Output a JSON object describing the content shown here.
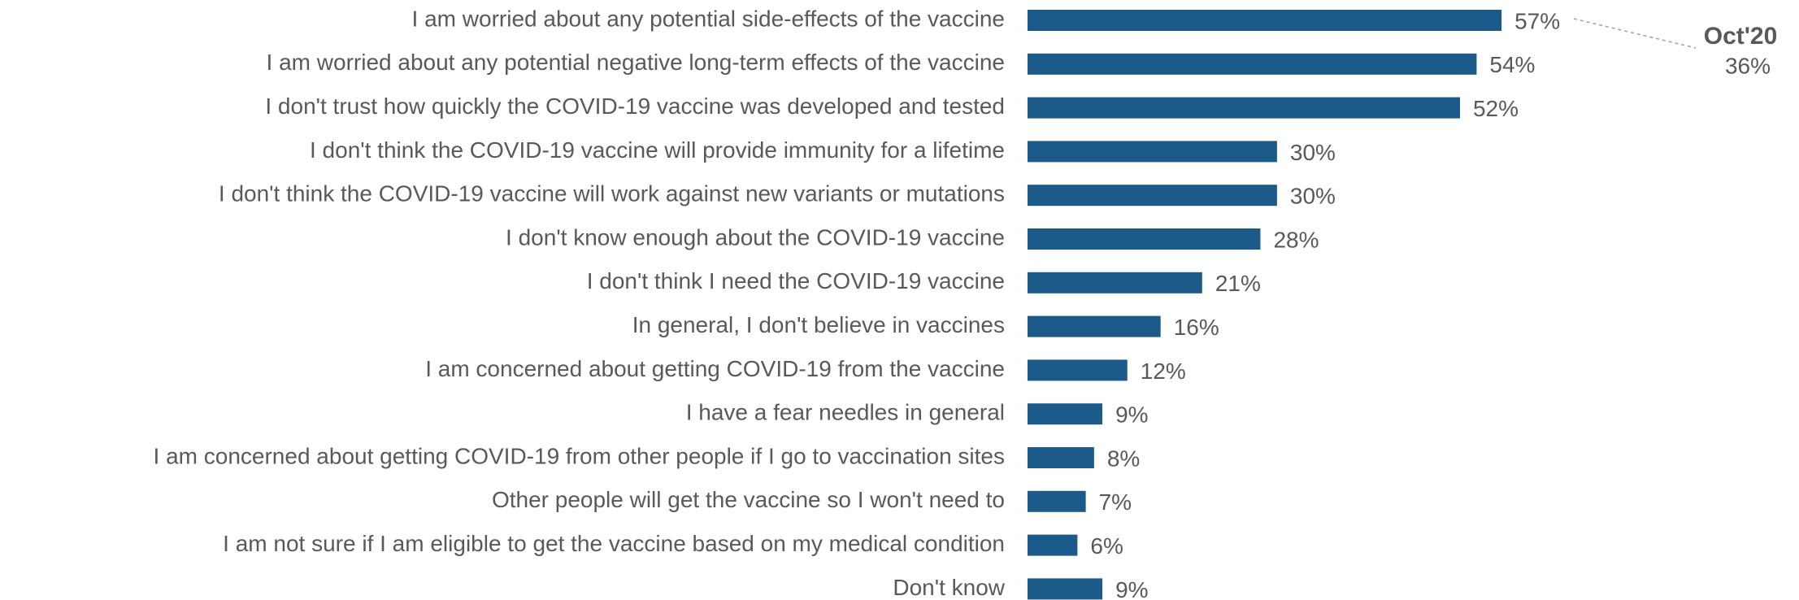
{
  "chart_data": {
    "type": "bar",
    "orientation": "horizontal",
    "categories": [
      "I am worried about any potential side-effects of the vaccine",
      "I am worried about any potential negative long-term effects of the vaccine",
      "I don't trust how quickly the COVID-19 vaccine was developed and tested",
      "I don't think the COVID-19 vaccine will provide immunity for a lifetime",
      "I don't think the COVID-19 vaccine will work against new variants or mutations",
      "I don't know enough about the COVID-19 vaccine",
      "I don't think I need the COVID-19 vaccine",
      "In general, I don't believe in vaccines",
      "I am concerned about getting COVID-19 from the vaccine",
      "I have a fear needles in general",
      "I am concerned about getting COVID-19 from other people if I go to vaccination sites",
      "Other people will get the vaccine so I won't need to",
      "I am not sure if I am eligible to get the vaccine based on my medical condition",
      "Don't know"
    ],
    "values": [
      57,
      54,
      52,
      30,
      30,
      28,
      21,
      16,
      12,
      9,
      8,
      7,
      6,
      9
    ],
    "value_labels": [
      "57%",
      "54%",
      "52%",
      "30%",
      "30%",
      "28%",
      "21%",
      "16%",
      "12%",
      "9%",
      "8%",
      "7%",
      "6%",
      "9%"
    ],
    "color": "#1c5a8a",
    "xlim": [
      0,
      100
    ],
    "annotation": {
      "label": "Oct'20",
      "text": "36%"
    }
  }
}
